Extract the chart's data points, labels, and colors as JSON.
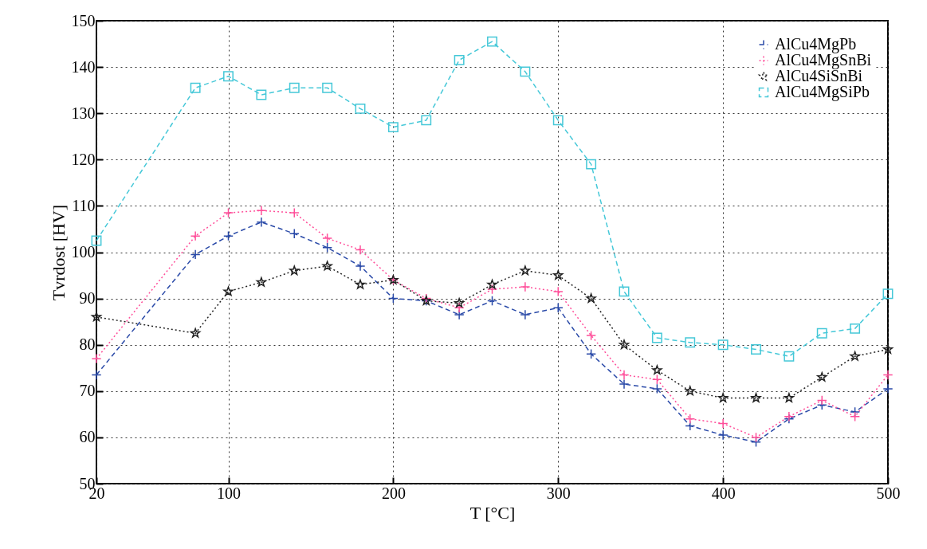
{
  "chart_data": {
    "type": "line",
    "xlabel": "T [°C]",
    "ylabel": "Tvrdost [HV]",
    "x": [
      20,
      80,
      100,
      120,
      140,
      160,
      180,
      200,
      220,
      240,
      260,
      280,
      300,
      320,
      340,
      360,
      380,
      400,
      420,
      440,
      460,
      480,
      500
    ],
    "series": [
      {
        "name": "AlCu4MgPb",
        "color": "#2a4aa8",
        "line_style": "dashed",
        "marker": "cross",
        "values": [
          73.5,
          99.5,
          103.5,
          106.5,
          104,
          101,
          97,
          90,
          89.5,
          86.5,
          89.5,
          86.5,
          88,
          78,
          71.5,
          70.5,
          62.5,
          60.5,
          59,
          64,
          67,
          65.5,
          70.5
        ]
      },
      {
        "name": "AlCu4MgSnBi",
        "color": "#ff4f9a",
        "line_style": "dotted",
        "marker": "cross",
        "values": [
          77,
          103.5,
          108.5,
          109,
          108.5,
          103,
          100.5,
          94,
          90,
          88,
          92,
          92.5,
          91.5,
          82,
          73.5,
          72.5,
          64,
          63,
          60,
          64.5,
          68,
          64.5,
          73.5
        ]
      },
      {
        "name": "AlCu4SiSnBi",
        "color": "#222222",
        "line_style": "dotted",
        "marker": "star",
        "values": [
          86,
          82.5,
          91.5,
          93.5,
          96,
          97,
          93,
          94,
          89.5,
          89,
          93,
          96,
          95,
          90,
          80,
          74.5,
          70,
          68.5,
          68.5,
          68.5,
          73,
          77.5,
          79
        ]
      },
      {
        "name": "AlCu4MgSiPb",
        "color": "#45c8d8",
        "line_style": "dashed",
        "marker": "square",
        "values": [
          102.5,
          135.5,
          138,
          134,
          135.5,
          135.5,
          131,
          127,
          128.5,
          141.5,
          145.5,
          139,
          128.5,
          119,
          91.5,
          81.5,
          80.5,
          80,
          79,
          77.5,
          82.5,
          83.5,
          91
        ]
      }
    ],
    "xlim": [
      20,
      500
    ],
    "xticks": [
      20,
      100,
      200,
      300,
      400,
      500
    ],
    "ylim": [
      50,
      150
    ],
    "yticks": [
      50,
      60,
      70,
      80,
      90,
      100,
      110,
      120,
      130,
      140,
      150
    ],
    "grid": true,
    "legend": "top right"
  }
}
